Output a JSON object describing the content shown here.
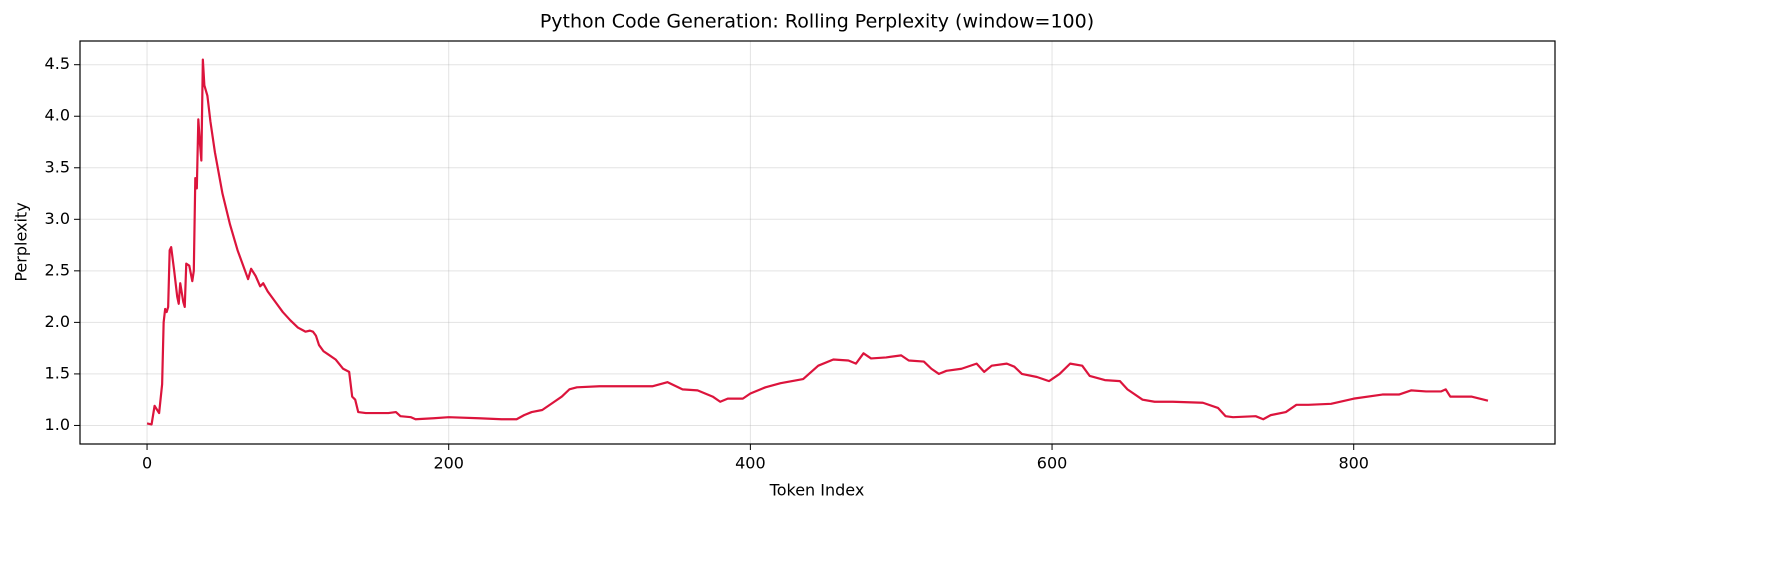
{
  "chart_data": {
    "type": "line",
    "title": "Python Code Generation: Rolling Perplexity (window=100)",
    "x_label": "Token Index",
    "y_label": "Perplexity",
    "xlim": [
      -44.45,
      933.45
    ],
    "ylim": [
      0.82,
      4.73
    ],
    "xticks": [
      0,
      200,
      400,
      600,
      800
    ],
    "yticks": [
      {
        "value": 1,
        "label": "1.0"
      },
      {
        "value": 1.5,
        "label": "1.5"
      },
      {
        "value": 2,
        "label": "2.0"
      },
      {
        "value": 2.5,
        "label": "2.5"
      },
      {
        "value": 3,
        "label": "3.0"
      },
      {
        "value": 3.5,
        "label": "3.5"
      },
      {
        "value": 4,
        "label": "4.0"
      },
      {
        "value": 4.5,
        "label": "4.5"
      }
    ],
    "grid": true,
    "series": [
      {
        "name": "Rolling Perplexity",
        "color": "#dc143c",
        "x": [
          0,
          3,
          5,
          8,
          10,
          11,
          12,
          13,
          14,
          15,
          16,
          18,
          20,
          21,
          22,
          24,
          25,
          26,
          28,
          30,
          31,
          32,
          33,
          34,
          35,
          36,
          37,
          38,
          40,
          42,
          45,
          50,
          55,
          60,
          65,
          67,
          69,
          72,
          75,
          77,
          80,
          85,
          90,
          95,
          100,
          105,
          108,
          110,
          112,
          114,
          117,
          120,
          125,
          130,
          134,
          136,
          138,
          140,
          145,
          160,
          165,
          168,
          175,
          178,
          190,
          200,
          220,
          235,
          245,
          250,
          255,
          262,
          270,
          275,
          280,
          285,
          300,
          320,
          335,
          345,
          355,
          365,
          375,
          380,
          385,
          395,
          400,
          410,
          420,
          435,
          445,
          455,
          465,
          470,
          475,
          480,
          490,
          500,
          505,
          515,
          520,
          525,
          530,
          540,
          550,
          555,
          560,
          570,
          575,
          580,
          590,
          598,
          605,
          612,
          620,
          625,
          635,
          645,
          650,
          660,
          668,
          680,
          700,
          710,
          715,
          720,
          735,
          740,
          745,
          755,
          762,
          770,
          785,
          800,
          819,
          830,
          838,
          848,
          858,
          861,
          864,
          878,
          889
        ],
        "values": [
          1.02,
          1.01,
          1.19,
          1.12,
          1.4,
          2.0,
          2.13,
          2.1,
          2.15,
          2.7,
          2.73,
          2.5,
          2.25,
          2.18,
          2.38,
          2.2,
          2.15,
          2.57,
          2.55,
          2.4,
          2.5,
          3.4,
          3.3,
          3.97,
          3.75,
          3.57,
          4.55,
          4.3,
          4.2,
          3.95,
          3.65,
          3.25,
          2.95,
          2.7,
          2.5,
          2.42,
          2.52,
          2.45,
          2.35,
          2.38,
          2.3,
          2.2,
          2.1,
          2.02,
          1.95,
          1.91,
          1.92,
          1.91,
          1.87,
          1.78,
          1.72,
          1.69,
          1.64,
          1.55,
          1.52,
          1.28,
          1.25,
          1.13,
          1.12,
          1.12,
          1.13,
          1.09,
          1.08,
          1.06,
          1.07,
          1.08,
          1.07,
          1.06,
          1.06,
          1.1,
          1.13,
          1.15,
          1.23,
          1.28,
          1.35,
          1.37,
          1.38,
          1.38,
          1.38,
          1.42,
          1.35,
          1.34,
          1.28,
          1.23,
          1.26,
          1.26,
          1.31,
          1.37,
          1.41,
          1.45,
          1.58,
          1.64,
          1.63,
          1.6,
          1.7,
          1.65,
          1.66,
          1.68,
          1.63,
          1.62,
          1.55,
          1.5,
          1.53,
          1.55,
          1.6,
          1.52,
          1.58,
          1.6,
          1.57,
          1.5,
          1.47,
          1.43,
          1.5,
          1.6,
          1.58,
          1.48,
          1.44,
          1.43,
          1.35,
          1.25,
          1.23,
          1.23,
          1.22,
          1.17,
          1.09,
          1.08,
          1.09,
          1.06,
          1.1,
          1.13,
          1.2,
          1.2,
          1.21,
          1.26,
          1.3,
          1.3,
          1.34,
          1.33,
          1.33,
          1.35,
          1.28,
          1.28,
          1.24
        ]
      }
    ]
  }
}
